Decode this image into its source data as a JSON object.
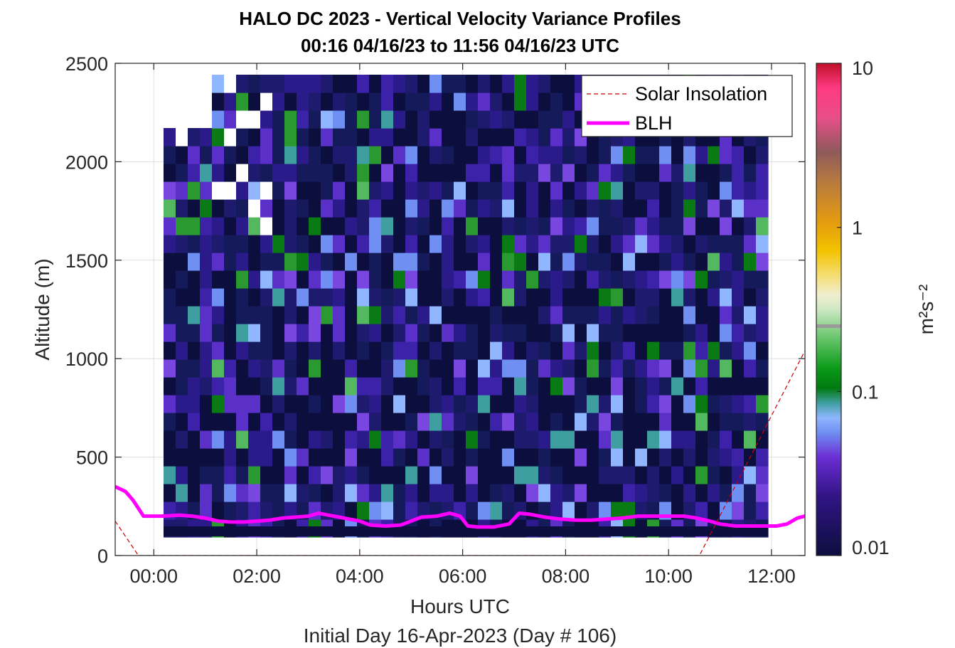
{
  "chart_data": {
    "type": "heatmap",
    "title": "HALO DC 2023 - Vertical Velocity Variance Profiles",
    "subtitle": "00:16 04/16/23 to 11:56 04/16/23  UTC",
    "xlabel": "Hours UTC",
    "xlabel2": "Initial Day 16-Apr-2023 (Day # 106)",
    "ylabel": "Altitude (m)",
    "xlim_hours": [
      -0.75,
      12.65
    ],
    "ylim": [
      0,
      2500
    ],
    "x_ticks": [
      {
        "value": 0,
        "label": "00:00"
      },
      {
        "value": 2,
        "label": "02:00"
      },
      {
        "value": 4,
        "label": "04:00"
      },
      {
        "value": 6,
        "label": "06:00"
      },
      {
        "value": 8,
        "label": "08:00"
      },
      {
        "value": 10,
        "label": "10:00"
      },
      {
        "value": 12,
        "label": "12:00"
      }
    ],
    "y_ticks": [
      {
        "value": 0,
        "label": "0"
      },
      {
        "value": 500,
        "label": "500"
      },
      {
        "value": 1000,
        "label": "1000"
      },
      {
        "value": 1500,
        "label": "1500"
      },
      {
        "value": 2000,
        "label": "2000"
      },
      {
        "value": 2500,
        "label": "2500"
      }
    ],
    "grid": true,
    "colorbar": {
      "scale": "log",
      "range": [
        0.01,
        10
      ],
      "unit": "m²s⁻²",
      "ticks": [
        {
          "value": 0.01,
          "label": "0.01"
        },
        {
          "value": 0.1,
          "label": "0.1"
        },
        {
          "value": 1,
          "label": "1"
        },
        {
          "value": 10,
          "label": "10"
        }
      ],
      "marker_value": 0.25
    },
    "legend": {
      "placement": "top-right",
      "entries": [
        {
          "label": "Solar Insolation",
          "color": "#cc0000",
          "style": "dashed"
        },
        {
          "label": "BLH",
          "color": "#ff00ff",
          "style": "solid"
        }
      ]
    },
    "series": [
      {
        "name": "BLH",
        "color": "#ff00ff",
        "x_hours": [
          -0.75,
          -0.55,
          -0.4,
          -0.2,
          0.0,
          0.15,
          0.5,
          0.75,
          1.0,
          1.25,
          1.5,
          1.75,
          2.0,
          2.25,
          2.5,
          2.75,
          3.0,
          3.2,
          3.4,
          3.6,
          3.8,
          4.0,
          4.2,
          4.5,
          4.8,
          5.0,
          5.2,
          5.5,
          5.75,
          5.95,
          6.1,
          6.3,
          6.6,
          6.9,
          7.1,
          7.3,
          7.6,
          7.9,
          8.2,
          8.5,
          8.8,
          9.1,
          9.4,
          9.7,
          10.0,
          10.3,
          10.55,
          10.8,
          11.0,
          11.3,
          11.6,
          11.9,
          12.1,
          12.3,
          12.5,
          12.65
        ],
        "y_m": [
          350,
          325,
          280,
          200,
          200,
          200,
          205,
          200,
          190,
          175,
          170,
          170,
          175,
          180,
          190,
          195,
          200,
          215,
          205,
          195,
          185,
          175,
          155,
          150,
          155,
          175,
          195,
          200,
          215,
          200,
          150,
          145,
          145,
          160,
          215,
          210,
          195,
          185,
          180,
          180,
          185,
          190,
          200,
          200,
          200,
          200,
          190,
          175,
          160,
          150,
          150,
          150,
          150,
          160,
          190,
          200
        ]
      },
      {
        "name": "Solar Insolation",
        "color": "#cc0000",
        "style": "dashed",
        "x_hours": [
          -0.75,
          -0.3,
          10.6,
          12.65
        ],
        "y_m": [
          175,
          0,
          0,
          1040
        ]
      }
    ]
  }
}
